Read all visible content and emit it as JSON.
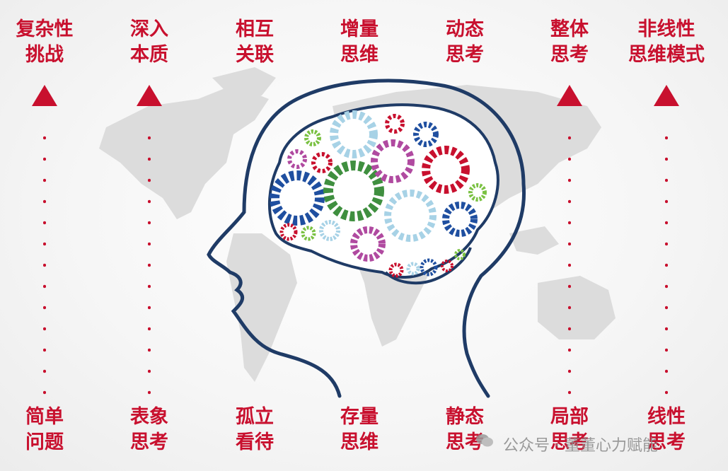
{
  "columns": [
    {
      "top": [
        "复杂性",
        "挑战"
      ],
      "bottom": [
        "简单",
        "问题"
      ],
      "arrow": true
    },
    {
      "top": [
        "深入",
        "本质"
      ],
      "bottom": [
        "表象",
        "思考"
      ],
      "arrow": true
    },
    {
      "top": [
        "相互",
        "关联"
      ],
      "bottom": [
        "孤立",
        "看待"
      ],
      "arrow": false
    },
    {
      "top": [
        "增量",
        "思维"
      ],
      "bottom": [
        "存量",
        "思维"
      ],
      "arrow": false
    },
    {
      "top": [
        "动态",
        "思考"
      ],
      "bottom": [
        "静态",
        "思考"
      ],
      "arrow": false
    },
    {
      "top": [
        "整体",
        "思考"
      ],
      "bottom": [
        "局部",
        "思考"
      ],
      "arrow": true
    },
    {
      "top": [
        "非线性",
        "思维模式"
      ],
      "bottom": [
        "线性",
        "思考"
      ],
      "arrow": true
    }
  ],
  "watermark": "公众号 · 董董心力赋能",
  "colors": {
    "accent": "#c8102e",
    "head_outline": "#1f3b66",
    "map": "#d9d9d9"
  },
  "icons": [
    "brain-gears-illustration",
    "world-map-background",
    "wechat-icon"
  ]
}
